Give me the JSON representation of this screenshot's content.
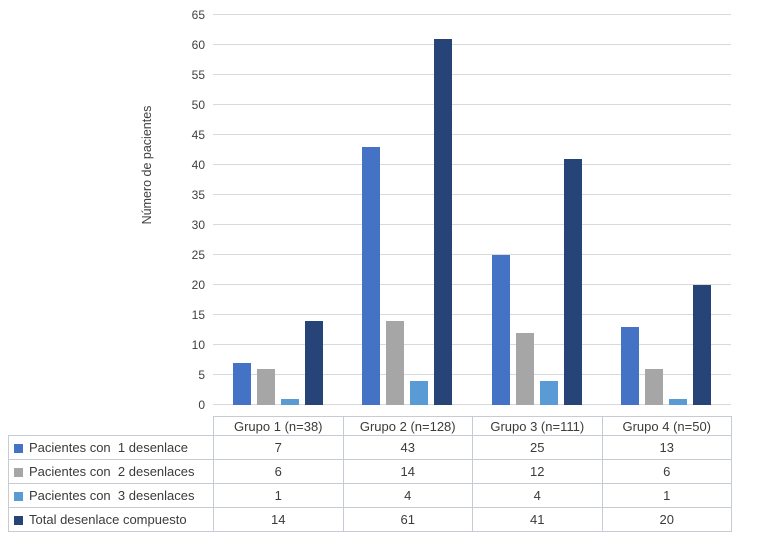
{
  "chart_data": {
    "type": "bar",
    "title": "",
    "ylabel": "Número de pacientes",
    "xlabel": "",
    "ylim": [
      0,
      65
    ],
    "ytick_step": 5,
    "grid": true,
    "legend_position": "bottom-table",
    "categories": [
      "Grupo 1 (n=38)",
      "Grupo 2 (n=128)",
      "Grupo 3 (n=111)",
      "Grupo 4 (n=50)"
    ],
    "series": [
      {
        "name": "Pacientes con  1 desenlace",
        "color": "#4472C4",
        "values": [
          7,
          43,
          25,
          13
        ]
      },
      {
        "name": "Pacientes con  2 desenlaces",
        "color": "#A6A6A6",
        "values": [
          6,
          14,
          12,
          6
        ]
      },
      {
        "name": "Pacientes con  3 desenlaces",
        "color": "#5B9BD5",
        "values": [
          1,
          4,
          4,
          1
        ]
      },
      {
        "name": "Total desenlace compuesto",
        "color": "#264478",
        "values": [
          14,
          61,
          41,
          20
        ]
      }
    ],
    "colors": {
      "gridline": "#d9d9d9",
      "table_border": "#c6ccd4",
      "text": "#3f3f3f"
    }
  }
}
